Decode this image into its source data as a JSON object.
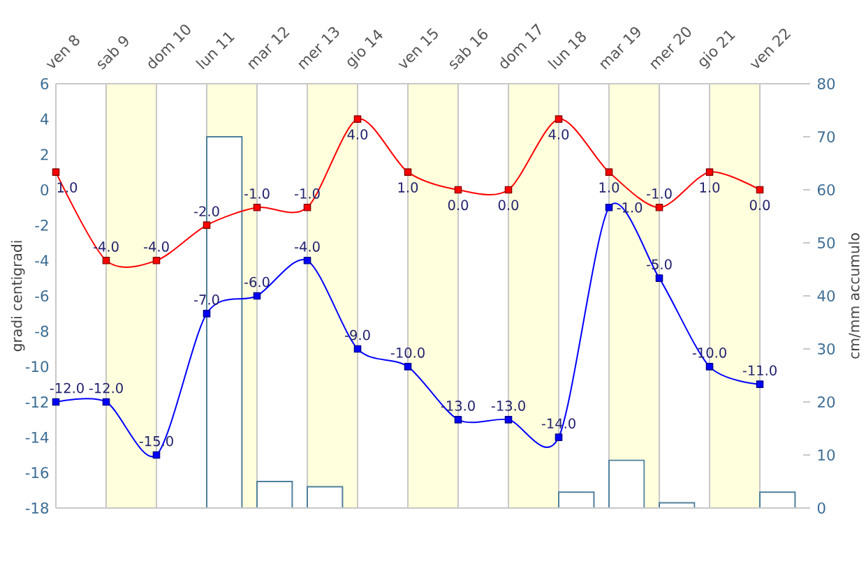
{
  "chart_data": {
    "type": "line",
    "ylabel": "gradi centigradi",
    "y2label": "cm/mm accumulo",
    "categories": [
      "ven 8",
      "sab 9",
      "dom 10",
      "lun 11",
      "mar 12",
      "mer 13",
      "gio 14",
      "ven 15",
      "sab 16",
      "dom 17",
      "lun 18",
      "mar 19",
      "mer 20",
      "gio 21",
      "ven 22"
    ],
    "ylim": [
      -18,
      6
    ],
    "yticks": [
      -18,
      -16,
      -14,
      -12,
      -10,
      -8,
      -6,
      -4,
      -2,
      0,
      2,
      4,
      6
    ],
    "y2lim": [
      0,
      80
    ],
    "y2ticks": [
      0,
      10,
      20,
      30,
      40,
      50,
      60,
      70,
      80
    ],
    "grid": "x",
    "marker": "square",
    "line_style": "solid",
    "bands": [
      {
        "axis": "x",
        "from": "sab 9",
        "to": "dom 10",
        "color": "#ffffdd"
      },
      {
        "axis": "x",
        "from": "lun 11",
        "to": "mar 12",
        "color": "#ffffdd"
      },
      {
        "axis": "x",
        "from": "mer 13",
        "to": "gio 14",
        "color": "#ffffdd"
      },
      {
        "axis": "x",
        "from": "ven 15",
        "to": "sab 16",
        "color": "#ffffdd"
      },
      {
        "axis": "x",
        "from": "dom 17",
        "to": "lun 18",
        "color": "#ffffdd"
      },
      {
        "axis": "x",
        "from": "mar 19",
        "to": "mer 20",
        "color": "#ffffdd"
      },
      {
        "axis": "x",
        "from": "gio 21",
        "to": "ven 22",
        "color": "#ffffdd"
      }
    ],
    "series": [
      {
        "color": "#ff0000",
        "values": [
          1,
          -4,
          -4,
          -2,
          -1,
          -1,
          4,
          1,
          0,
          0,
          4,
          1,
          -1,
          1,
          0
        ],
        "value_labels": [
          "1.0",
          "-4.0",
          "-4.0",
          "-2.0",
          "-1.0",
          "-1.0",
          "4.0",
          "1.0",
          "0.0",
          "0.0",
          "4.0",
          "1.0",
          "-1.0",
          "1.0",
          "0.0"
        ]
      },
      {
        "color": "#0000ff",
        "values": [
          -12,
          -12,
          -15,
          -7,
          -6,
          -4,
          -9,
          -10,
          -13,
          -13,
          -14,
          -1,
          -5,
          -10,
          -11
        ],
        "value_labels": [
          "-12.0",
          "-12.0",
          "-15.0",
          "-7.0",
          "-6.0",
          "-4.0",
          "-9.0",
          "-10.0",
          "-13.0",
          "-13.0",
          "-14.0",
          "-1.0",
          "-5.0",
          "-10.0",
          "-11.0"
        ]
      },
      {
        "type": "bar",
        "axis": "y2",
        "color": "#4f7f9b",
        "values": [
          null,
          null,
          null,
          70,
          5,
          4,
          null,
          null,
          null,
          null,
          3,
          9,
          1,
          null,
          3
        ]
      }
    ]
  }
}
